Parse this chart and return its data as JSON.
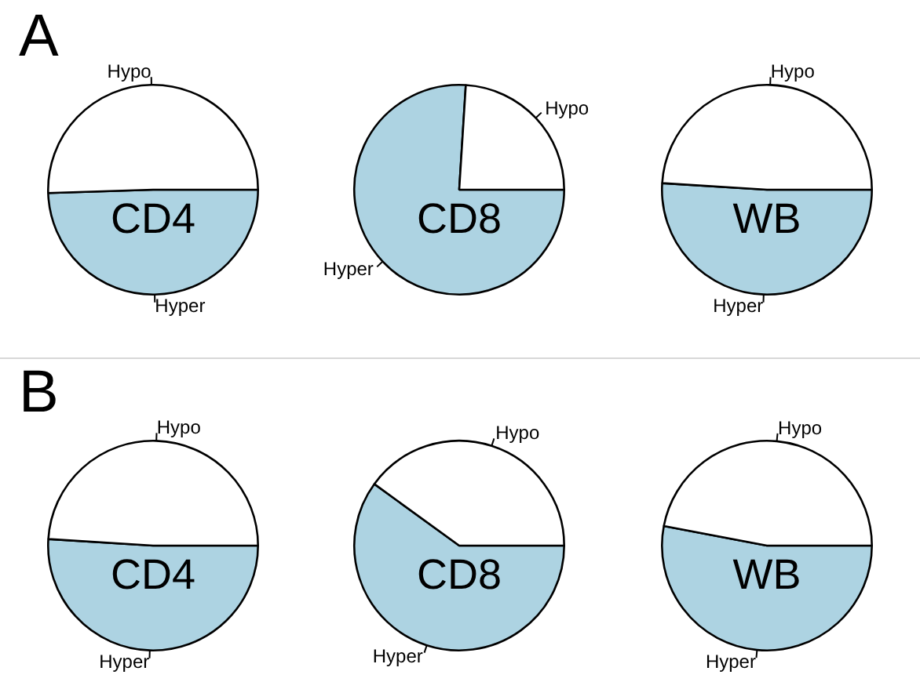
{
  "chart_data": [
    {
      "type": "pie",
      "title": "CD4",
      "annotations": [
        "A"
      ],
      "categories": [
        "Hyper",
        "Hypo"
      ],
      "values": [
        49.5,
        50.5
      ],
      "colors": [
        "#add3e2",
        "#ffffff"
      ]
    },
    {
      "type": "pie",
      "title": "CD8",
      "categories": [
        "Hyper",
        "Hypo"
      ],
      "values": [
        76,
        24
      ],
      "colors": [
        "#add3e2",
        "#ffffff"
      ]
    },
    {
      "type": "pie",
      "title": "WB",
      "categories": [
        "Hyper",
        "Hypo"
      ],
      "values": [
        51,
        49
      ],
      "colors": [
        "#add3e2",
        "#ffffff"
      ]
    },
    {
      "type": "pie",
      "title": "CD4",
      "annotations": [
        "B"
      ],
      "categories": [
        "Hyper",
        "Hypo"
      ],
      "values": [
        51,
        49
      ],
      "colors": [
        "#add3e2",
        "#ffffff"
      ]
    },
    {
      "type": "pie",
      "title": "CD8",
      "categories": [
        "Hyper",
        "Hypo"
      ],
      "values": [
        60,
        40
      ],
      "colors": [
        "#add3e2",
        "#ffffff"
      ]
    },
    {
      "type": "pie",
      "title": "WB",
      "categories": [
        "Hyper",
        "Hypo"
      ],
      "values": [
        53,
        47
      ],
      "colors": [
        "#add3e2",
        "#ffffff"
      ]
    }
  ]
}
